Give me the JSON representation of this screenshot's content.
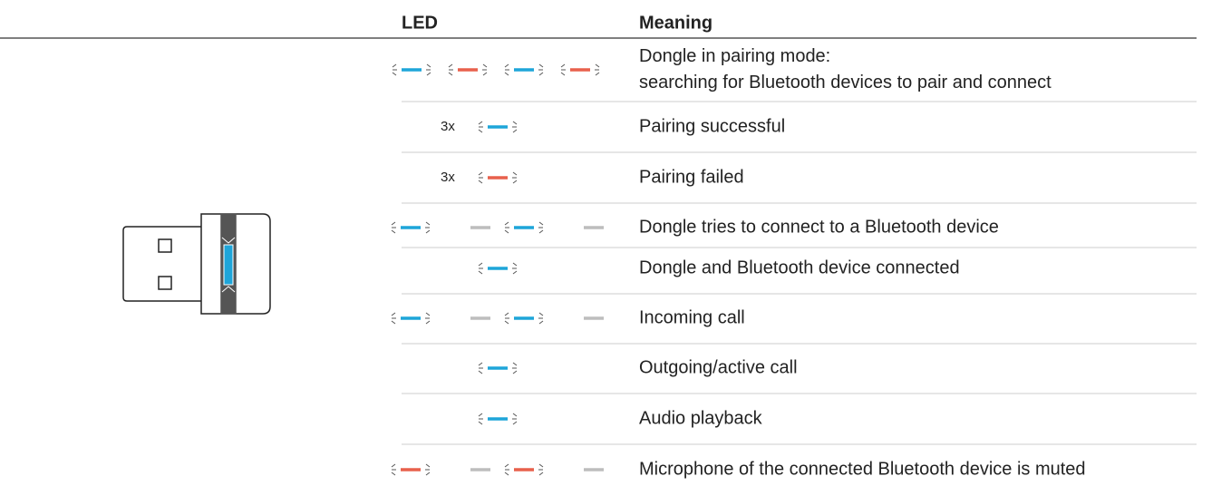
{
  "header": {
    "led": "LED",
    "meaning": "Meaning"
  },
  "rows": [
    {
      "lines": [
        "Dongle in pairing mode:",
        "searching for Bluetooth devices to pair and connect"
      ]
    },
    {
      "count": "3x",
      "lines": [
        "Pairing successful"
      ]
    },
    {
      "count": "3x",
      "lines": [
        "Pairing failed"
      ]
    },
    {
      "lines": [
        "Dongle tries to connect to a Bluetooth device"
      ]
    },
    {
      "lines": [
        "Dongle and Bluetooth device connected"
      ]
    },
    {
      "lines": [
        "Incoming call"
      ]
    },
    {
      "lines": [
        "Outgoing/active call"
      ]
    },
    {
      "lines": [
        "Audio playback"
      ]
    },
    {
      "lines": [
        "Microphone of the connected Bluetooth device is muted"
      ]
    }
  ]
}
